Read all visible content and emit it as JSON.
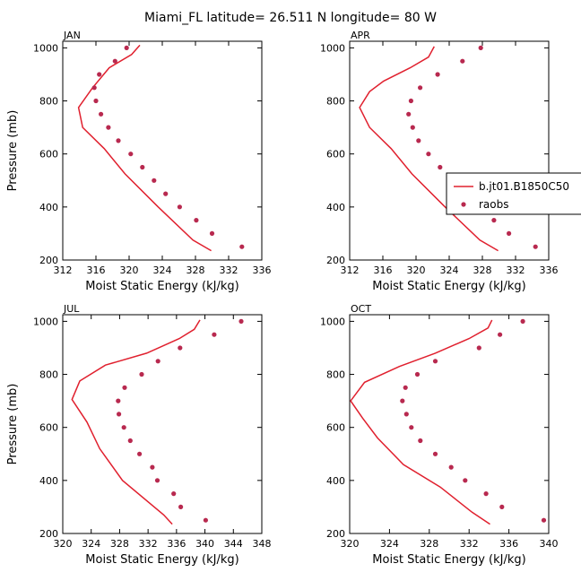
{
  "figure": {
    "title": "Miami_FL  latitude= 26.511 N longitude= 80 W",
    "legend": {
      "model_label": "b.jt01.B1850C50",
      "obs_label": "raobs",
      "placement": "right-middle"
    },
    "colors": {
      "model_line": "#e0202e",
      "obs_marker": "#b8294f",
      "axis": "#000000"
    }
  },
  "chart_data": [
    {
      "type": "line",
      "panel": "JAN",
      "title": "JAN",
      "xlabel": "Moist Static Energy (kJ/kg)",
      "ylabel": "Pressure (mb)",
      "xlim": [
        312,
        336
      ],
      "ylim": [
        1025,
        200
      ],
      "xticks": [
        312,
        316,
        320,
        324,
        328,
        332,
        336
      ],
      "yticks": [
        200,
        400,
        600,
        800,
        1000
      ],
      "series": [
        {
          "name": "b.jt01.B1850C50",
          "kind": "line",
          "points": [
            [
              329.9,
              235
            ],
            [
              327.7,
              275
            ],
            [
              323.5,
              400
            ],
            [
              319.5,
              525
            ],
            [
              317.0,
              620
            ],
            [
              314.4,
              700
            ],
            [
              313.9,
              775
            ],
            [
              315.6,
              850
            ],
            [
              317.6,
              925
            ],
            [
              320.3,
              975
            ],
            [
              321.3,
              1010
            ]
          ]
        },
        {
          "name": "raobs",
          "kind": "scatter",
          "points": [
            [
              333.6,
              250
            ],
            [
              330.0,
              300
            ],
            [
              328.1,
              350
            ],
            [
              326.1,
              400
            ],
            [
              324.4,
              450
            ],
            [
              323.0,
              500
            ],
            [
              321.6,
              550
            ],
            [
              320.2,
              600
            ],
            [
              318.7,
              650
            ],
            [
              317.5,
              700
            ],
            [
              316.6,
              750
            ],
            [
              316.0,
              800
            ],
            [
              315.8,
              850
            ],
            [
              316.4,
              900
            ],
            [
              318.3,
              950
            ],
            [
              319.7,
              1000
            ]
          ]
        }
      ]
    },
    {
      "type": "line",
      "panel": "APR",
      "title": "APR",
      "xlabel": "Moist Static Energy (kJ/kg)",
      "ylabel": "",
      "xlim": [
        312,
        336
      ],
      "ylim": [
        1025,
        200
      ],
      "xticks": [
        312,
        316,
        320,
        324,
        328,
        332,
        336
      ],
      "yticks": [
        200,
        400,
        600,
        800,
        1000
      ],
      "series": [
        {
          "name": "b.jt01.B1850C50",
          "kind": "line",
          "points": [
            [
              329.9,
              235
            ],
            [
              327.7,
              275
            ],
            [
              323.5,
              400
            ],
            [
              319.5,
              525
            ],
            [
              317.0,
              620
            ],
            [
              314.4,
              700
            ],
            [
              313.2,
              775
            ],
            [
              314.4,
              835
            ],
            [
              316.1,
              875
            ],
            [
              319.3,
              925
            ],
            [
              321.5,
              965
            ],
            [
              322.2,
              1005
            ]
          ]
        },
        {
          "name": "raobs",
          "kind": "scatter",
          "points": [
            [
              334.4,
              250
            ],
            [
              331.2,
              300
            ],
            [
              329.4,
              350
            ],
            [
              327.8,
              400
            ],
            [
              325.8,
              450
            ],
            [
              324.3,
              500
            ],
            [
              322.9,
              550
            ],
            [
              321.5,
              600
            ],
            [
              320.3,
              650
            ],
            [
              319.6,
              700
            ],
            [
              319.1,
              750
            ],
            [
              319.4,
              800
            ],
            [
              320.5,
              850
            ],
            [
              322.6,
              900
            ],
            [
              325.6,
              950
            ],
            [
              327.8,
              1000
            ]
          ]
        }
      ]
    },
    {
      "type": "line",
      "panel": "JUL",
      "title": "JUL",
      "xlabel": "Moist Static Energy (kJ/kg)",
      "ylabel": "Pressure (mb)",
      "xlim": [
        320,
        348
      ],
      "ylim": [
        1025,
        200
      ],
      "xticks": [
        320,
        324,
        328,
        332,
        336,
        340,
        344,
        348
      ],
      "yticks": [
        200,
        400,
        600,
        800,
        1000
      ],
      "series": [
        {
          "name": "b.jt01.B1850C50",
          "kind": "line",
          "points": [
            [
              335.4,
              235
            ],
            [
              334.2,
              270
            ],
            [
              328.4,
              400
            ],
            [
              325.2,
              520
            ],
            [
              323.4,
              620
            ],
            [
              321.3,
              705
            ],
            [
              322.4,
              775
            ],
            [
              326.0,
              835
            ],
            [
              331.8,
              880
            ],
            [
              336.4,
              935
            ],
            [
              338.5,
              970
            ],
            [
              339.3,
              1005
            ]
          ]
        },
        {
          "name": "raobs",
          "kind": "scatter",
          "points": [
            [
              340.1,
              250
            ],
            [
              336.6,
              300
            ],
            [
              335.6,
              350
            ],
            [
              333.3,
              400
            ],
            [
              332.6,
              450
            ],
            [
              330.8,
              500
            ],
            [
              329.5,
              550
            ],
            [
              328.6,
              600
            ],
            [
              327.9,
              650
            ],
            [
              327.8,
              700
            ],
            [
              328.7,
              750
            ],
            [
              331.1,
              800
            ],
            [
              333.4,
              850
            ],
            [
              336.5,
              900
            ],
            [
              341.3,
              950
            ],
            [
              345.1,
              1000
            ]
          ]
        }
      ]
    },
    {
      "type": "line",
      "panel": "OCT",
      "title": "OCT",
      "xlabel": "Moist Static Energy (kJ/kg)",
      "ylabel": "",
      "xlim": [
        320,
        340
      ],
      "ylim": [
        1025,
        200
      ],
      "xticks": [
        320,
        324,
        328,
        332,
        336,
        340
      ],
      "yticks": [
        200,
        400,
        600,
        800,
        1000
      ],
      "series": [
        {
          "name": "b.jt01.B1850C50",
          "kind": "line",
          "points": [
            [
              334.1,
              235
            ],
            [
              332.3,
              280
            ],
            [
              329.1,
              375
            ],
            [
              325.4,
              460
            ],
            [
              322.8,
              560
            ],
            [
              321.3,
              635
            ],
            [
              320.1,
              700
            ],
            [
              321.5,
              770
            ],
            [
              325.0,
              830
            ],
            [
              328.6,
              880
            ],
            [
              332.0,
              935
            ],
            [
              333.9,
              975
            ],
            [
              334.3,
              1005
            ]
          ]
        },
        {
          "name": "raobs",
          "kind": "scatter",
          "points": [
            [
              339.5,
              250
            ],
            [
              335.3,
              300
            ],
            [
              333.7,
              350
            ],
            [
              331.6,
              400
            ],
            [
              330.2,
              450
            ],
            [
              328.6,
              500
            ],
            [
              327.1,
              550
            ],
            [
              326.2,
              600
            ],
            [
              325.7,
              650
            ],
            [
              325.3,
              700
            ],
            [
              325.6,
              750
            ],
            [
              326.8,
              800
            ],
            [
              328.6,
              850
            ],
            [
              333.0,
              900
            ],
            [
              335.1,
              950
            ],
            [
              337.4,
              1000
            ]
          ]
        }
      ]
    }
  ]
}
